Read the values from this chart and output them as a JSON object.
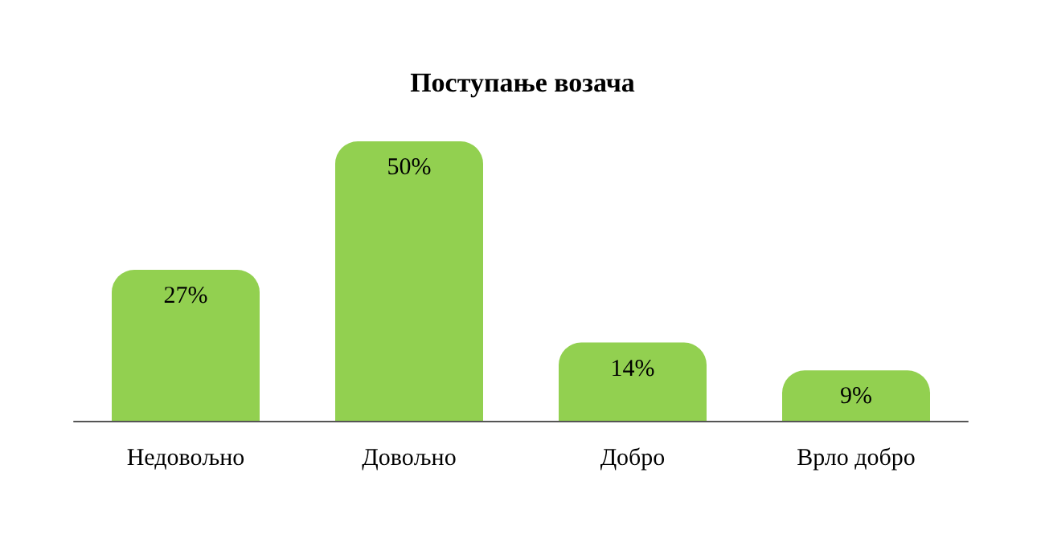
{
  "chart_data": {
    "type": "bar",
    "title": "Поступање возача",
    "categories": [
      "Недовољно",
      "Довољно",
      "Добро",
      "Врло добро"
    ],
    "values": [
      27,
      50,
      14,
      9
    ],
    "value_labels": [
      "27%",
      "50%",
      "14%",
      "9%"
    ],
    "color": "#92d050"
  }
}
